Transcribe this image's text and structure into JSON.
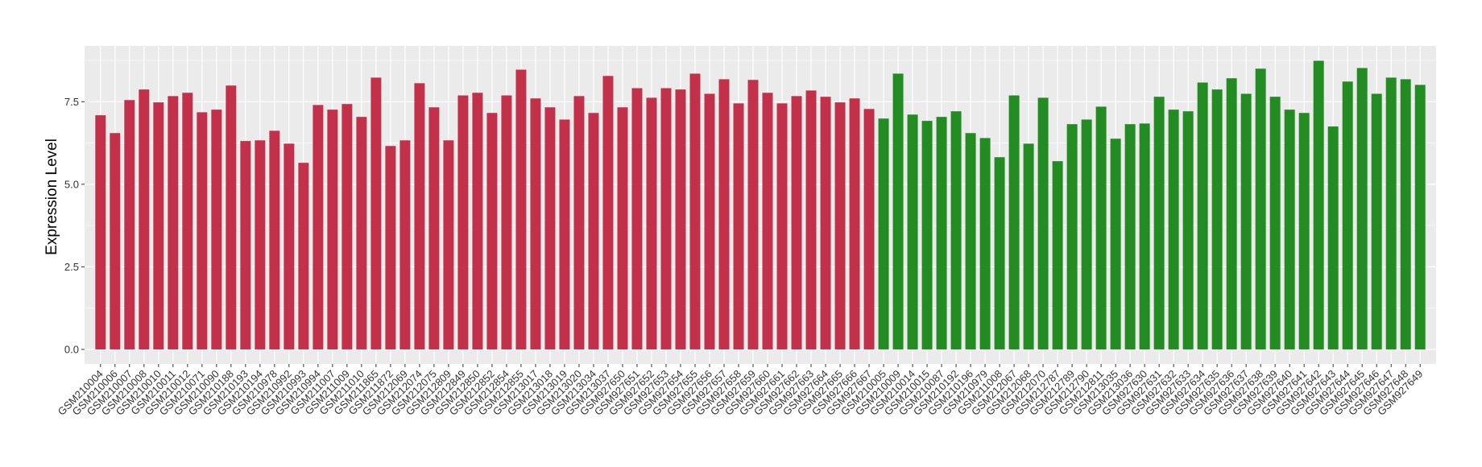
{
  "chart_data": {
    "type": "bar",
    "title": "",
    "xlabel": "",
    "ylabel": "Expression Level",
    "ylim": [
      -0.44,
      9.19
    ],
    "yticks": [
      "0.0",
      "2.5",
      "5.0",
      "7.5"
    ],
    "ytick_values": [
      0,
      2.5,
      5,
      7.5
    ],
    "grid": true,
    "legend": "none",
    "colors": {
      "group1": "#C3304A",
      "group2": "#228B22",
      "panel": "#EBEBEB",
      "grid": "#FFFFFF"
    },
    "categories": [
      "GSM210004",
      "GSM210006",
      "GSM210007",
      "GSM210008",
      "GSM210010",
      "GSM210011",
      "GSM210012",
      "GSM210071",
      "GSM210090",
      "GSM210188",
      "GSM210193",
      "GSM210194",
      "GSM210978",
      "GSM210992",
      "GSM210993",
      "GSM210994",
      "GSM211007",
      "GSM211009",
      "GSM211010",
      "GSM211865",
      "GSM211872",
      "GSM212069",
      "GSM212074",
      "GSM212075",
      "GSM212809",
      "GSM212849",
      "GSM212850",
      "GSM212852",
      "GSM212854",
      "GSM212855",
      "GSM213017",
      "GSM213018",
      "GSM213019",
      "GSM213020",
      "GSM213034",
      "GSM213037",
      "GSM927650",
      "GSM927651",
      "GSM927652",
      "GSM927653",
      "GSM927654",
      "GSM927655",
      "GSM927656",
      "GSM927657",
      "GSM927658",
      "GSM927659",
      "GSM927660",
      "GSM927661",
      "GSM927662",
      "GSM927663",
      "GSM927664",
      "GSM927665",
      "GSM927666",
      "GSM927667",
      "GSM210005",
      "GSM210009",
      "GSM210014",
      "GSM210015",
      "GSM210087",
      "GSM210192",
      "GSM210196",
      "GSM210979",
      "GSM211008",
      "GSM212067",
      "GSM212068",
      "GSM212070",
      "GSM212787",
      "GSM212789",
      "GSM212790",
      "GSM212811",
      "GSM213035",
      "GSM213036",
      "GSM927630",
      "GSM927631",
      "GSM927632",
      "GSM927633",
      "GSM927634",
      "GSM927635",
      "GSM927636",
      "GSM927637",
      "GSM927638",
      "GSM927639",
      "GSM927640",
      "GSM927641",
      "GSM927642",
      "GSM927643",
      "GSM927644",
      "GSM927645",
      "GSM927646",
      "GSM927647",
      "GSM927648",
      "GSM927649"
    ],
    "values": [
      7.09,
      6.55,
      7.55,
      7.87,
      7.48,
      7.67,
      7.77,
      7.18,
      7.26,
      7.99,
      6.31,
      6.33,
      6.62,
      6.23,
      5.65,
      7.4,
      7.26,
      7.43,
      7.04,
      8.23,
      6.16,
      6.33,
      8.06,
      7.33,
      6.33,
      7.69,
      7.77,
      7.16,
      7.69,
      8.47,
      7.6,
      7.33,
      6.96,
      7.67,
      7.16,
      8.28,
      7.33,
      7.91,
      7.62,
      7.91,
      7.87,
      8.35,
      7.74,
      8.18,
      7.45,
      8.16,
      7.77,
      7.45,
      7.67,
      7.84,
      7.65,
      7.48,
      7.6,
      7.28,
      6.99,
      8.35,
      7.11,
      6.92,
      7.04,
      7.21,
      6.55,
      6.4,
      5.82,
      7.69,
      6.23,
      7.62,
      5.7,
      6.82,
      6.96,
      7.35,
      6.38,
      6.82,
      6.84,
      7.65,
      7.26,
      7.21,
      8.08,
      7.87,
      8.21,
      7.74,
      8.5,
      7.65,
      7.26,
      7.16,
      8.74,
      6.75,
      8.11,
      8.52,
      7.74,
      8.23,
      8.18,
      8.01
    ],
    "groups": [
      "group1",
      "group1",
      "group1",
      "group1",
      "group1",
      "group1",
      "group1",
      "group1",
      "group1",
      "group1",
      "group1",
      "group1",
      "group1",
      "group1",
      "group1",
      "group1",
      "group1",
      "group1",
      "group1",
      "group1",
      "group1",
      "group1",
      "group1",
      "group1",
      "group1",
      "group1",
      "group1",
      "group1",
      "group1",
      "group1",
      "group1",
      "group1",
      "group1",
      "group1",
      "group1",
      "group1",
      "group1",
      "group1",
      "group1",
      "group1",
      "group1",
      "group1",
      "group1",
      "group1",
      "group1",
      "group1",
      "group1",
      "group1",
      "group1",
      "group1",
      "group1",
      "group1",
      "group1",
      "group1",
      "group2",
      "group2",
      "group2",
      "group2",
      "group2",
      "group2",
      "group2",
      "group2",
      "group2",
      "group2",
      "group2",
      "group2",
      "group2",
      "group2",
      "group2",
      "group2",
      "group2",
      "group2",
      "group2",
      "group2",
      "group2",
      "group2",
      "group2",
      "group2",
      "group2",
      "group2",
      "group2",
      "group2",
      "group2",
      "group2",
      "group2",
      "group2",
      "group2",
      "group2",
      "group2",
      "group2",
      "group2",
      "group2"
    ]
  }
}
